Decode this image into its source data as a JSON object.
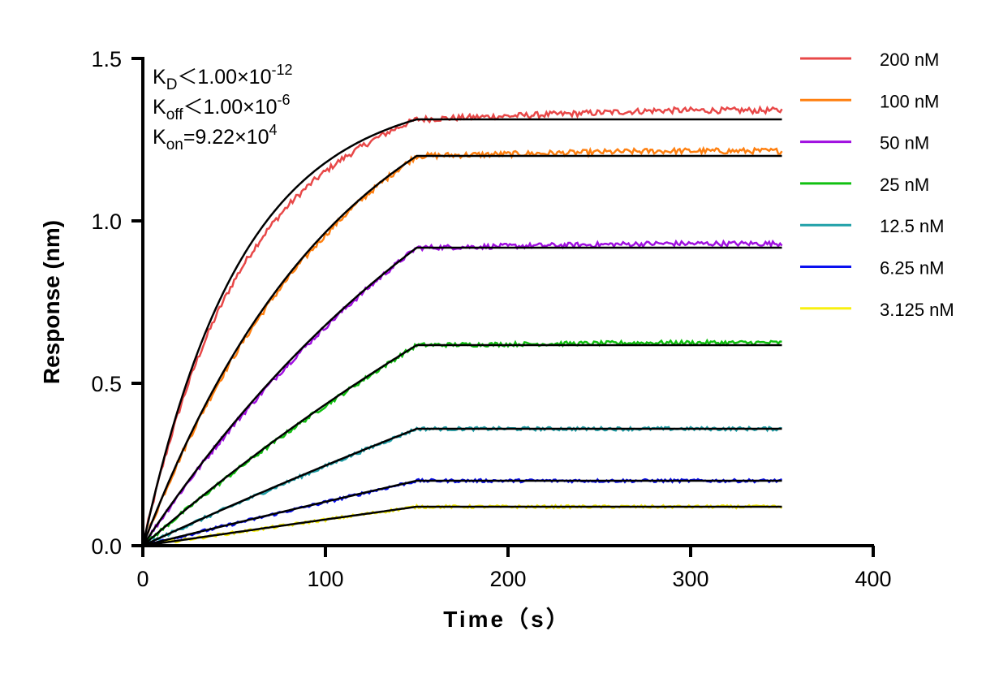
{
  "chart_data": {
    "type": "line",
    "xlabel": "Time（s）",
    "ylabel": "Response (nm)",
    "xlim": [
      0,
      400
    ],
    "ylim": [
      0,
      1.5
    ],
    "xticks": [
      0,
      100,
      200,
      300,
      400
    ],
    "yticks": [
      0.0,
      0.5,
      1.0,
      1.5
    ],
    "xtick_labels": [
      "0",
      "100",
      "200",
      "300",
      "400"
    ],
    "ytick_labels": [
      "0.0",
      "0.5",
      "1.0",
      "1.5"
    ],
    "grid": false,
    "legend_placement": "right",
    "association_end_s": 150,
    "data_end_s": 350,
    "fit_color": "#000000",
    "annotations": [
      {
        "base": "K",
        "sub": "D",
        "rel": "<1.00×10",
        "sup": "-12"
      },
      {
        "base": "K",
        "sub": "off",
        "rel": "<1.00×10",
        "sup": "-6"
      },
      {
        "base": "K",
        "sub": "on",
        "rel": "=9.22×10",
        "sup": "4"
      }
    ],
    "kon": 92200,
    "series": [
      {
        "name": "200 nM",
        "conc_nM": 200,
        "color": "#e84848",
        "fit_plateau": 1.3125,
        "data_end": 1.34
      },
      {
        "name": "100 nM",
        "conc_nM": 100,
        "color": "#ff8010",
        "fit_plateau": 1.2,
        "data_end": 1.215
      },
      {
        "name": "50 nM",
        "conc_nM": 50,
        "color": "#a010e0",
        "fit_plateau": 0.9175,
        "data_end": 0.93
      },
      {
        "name": "25 nM",
        "conc_nM": 25,
        "color": "#10c010",
        "fit_plateau": 0.6175,
        "data_end": 0.625
      },
      {
        "name": "12.5 nM",
        "conc_nM": 12.5,
        "color": "#20a0a8",
        "fit_plateau": 0.36,
        "data_end": 0.36
      },
      {
        "name": "6.25 nM",
        "conc_nM": 6.25,
        "color": "#0a10f0",
        "fit_plateau": 0.2,
        "data_end": 0.2
      },
      {
        "name": "3.125 nM",
        "conc_nM": 3.125,
        "color": "#f8f010",
        "fit_plateau": 0.12,
        "data_end": 0.12
      }
    ]
  }
}
